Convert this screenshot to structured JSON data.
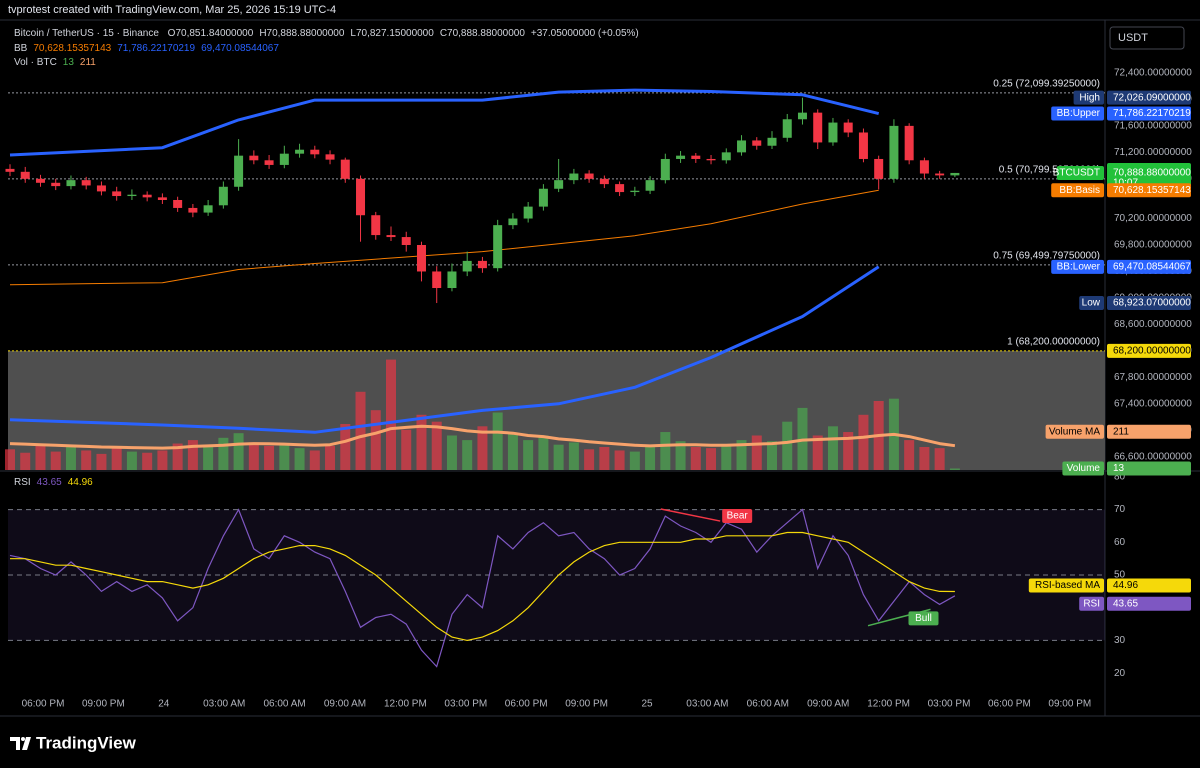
{
  "attribution": "tvprotest created with TradingView.com, Mar 25, 2026 15:19 UTC-4",
  "logo": "TradingView",
  "chart_data": {
    "type": "candlestick",
    "title": "Bitcoin / TetherUS · 15 · Binance",
    "ohlc_legend": [
      "O70,851.84000000",
      "H70,888.88000000",
      "L70,827.15000000",
      "C70,888.88000000",
      "+37.05000000 (+0.05%)"
    ],
    "bb_legend": {
      "name": "BB",
      "values": [
        "70,628.15357143",
        "71,786.22170219",
        "69,470.08544067"
      ]
    },
    "vol_legend": {
      "name": "Vol · BTC",
      "values": [
        13,
        211
      ]
    },
    "currency": "USDT",
    "x_labels": [
      "06:00 PM",
      "09:00 PM",
      "24",
      "03:00 AM",
      "06:00 AM",
      "09:00 AM",
      "12:00 PM",
      "03:00 PM",
      "06:00 PM",
      "09:00 PM",
      "25",
      "03:00 AM",
      "06:00 AM",
      "09:00 AM",
      "12:00 PM",
      "03:00 PM",
      "06:00 PM",
      "09:00 PM"
    ],
    "up_color": "#4caf50",
    "down_color": "#f23645",
    "open": [
      70950,
      70906,
      70800,
      70740,
      70690,
      70780,
      70700,
      70610,
      70540,
      70560,
      70520,
      70480,
      70360,
      70290,
      70400,
      70680,
      71150,
      71080,
      71010,
      71180,
      71240,
      71170,
      71090,
      70800,
      70250,
      69950,
      69920,
      69800,
      69400,
      69150,
      69400,
      69560,
      69450,
      70100,
      70200,
      70380,
      70650,
      70780,
      70880,
      70800,
      70720,
      70600,
      70620,
      70780,
      71100,
      71150,
      71100,
      71080,
      71200,
      71380,
      71300,
      71420,
      71700,
      71800,
      71350,
      71650,
      71500,
      71100,
      70800,
      71600,
      71080,
      70880,
      70851.84
    ],
    "high": [
      71020,
      70980,
      70860,
      70800,
      70850,
      70830,
      70760,
      70680,
      70640,
      70610,
      70580,
      70530,
      70420,
      70480,
      70760,
      71400,
      71230,
      71160,
      71300,
      71330,
      71300,
      71230,
      71120,
      70850,
      70300,
      70080,
      70000,
      69850,
      69480,
      69520,
      69700,
      69620,
      70180,
      70280,
      70450,
      70720,
      71100,
      70950,
      70930,
      70850,
      70760,
      70680,
      70840,
      71180,
      71220,
      71190,
      71160,
      71260,
      71460,
      71430,
      71520,
      71780,
      72026.09,
      71850,
      71720,
      71700,
      71560,
      71150,
      71700,
      71640,
      71120,
      70920,
      70888.88
    ],
    "low": [
      70840,
      70740,
      70680,
      70630,
      70640,
      70640,
      70550,
      70470,
      70480,
      70460,
      70420,
      70300,
      70220,
      70240,
      70350,
      70620,
      71020,
      70950,
      70960,
      71120,
      71110,
      71020,
      70740,
      69850,
      69880,
      69860,
      69700,
      69250,
      68923.07,
      69100,
      69330,
      69380,
      69400,
      70040,
      70140,
      70320,
      70600,
      70720,
      70740,
      70660,
      70540,
      70540,
      70570,
      70730,
      71040,
      71040,
      71020,
      71030,
      71150,
      71240,
      71250,
      71360,
      71620,
      71250,
      71300,
      71430,
      71050,
      70640,
      70740,
      71020,
      70800,
      70800,
      70827.15
    ],
    "close": [
      70906,
      70800,
      70740,
      70690,
      70780,
      70700,
      70610,
      70540,
      70560,
      70520,
      70480,
      70360,
      70290,
      70400,
      70680,
      71150,
      71080,
      71010,
      71180,
      71240,
      71170,
      71090,
      70800,
      70250,
      69950,
      69920,
      69800,
      69400,
      69150,
      69400,
      69560,
      69450,
      70100,
      70200,
      70380,
      70650,
      70780,
      70880,
      70800,
      70720,
      70600,
      70620,
      70780,
      71100,
      71150,
      71100,
      71080,
      71200,
      71380,
      71300,
      71420,
      71700,
      71800,
      71350,
      71650,
      71500,
      71100,
      70800,
      71600,
      71080,
      70880,
      70851.84,
      70888.88
    ],
    "ylim": [
      66400,
      73200
    ],
    "yticks": [
      {
        "value": 72400,
        "label": "72,400.00000000"
      },
      {
        "value": 72000,
        "label": "72,000.00000000"
      },
      {
        "value": 71600,
        "label": "71,600.00000000"
      },
      {
        "value": 71200,
        "label": "71,200.00000000"
      },
      {
        "value": 70800,
        "label": "70,800.00000000"
      },
      {
        "value": 70200,
        "label": "70,200.00000000"
      },
      {
        "value": 69800,
        "label": "69,800.00000000"
      },
      {
        "value": 69400,
        "label": "69,400.00000000"
      },
      {
        "value": 69000,
        "label": "69,000.00000000"
      },
      {
        "value": 68600,
        "label": "68,600.00000000"
      },
      {
        "value": 68200,
        "label": "68,200.00000000"
      },
      {
        "value": 67800,
        "label": "67,800.00000000"
      },
      {
        "value": 67400,
        "label": "67,400.00000000"
      },
      {
        "value": 67000,
        "label": "67,000.00000000"
      },
      {
        "value": 66600,
        "label": "66,600.00000000"
      }
    ],
    "bb": {
      "x": [
        0,
        10,
        15,
        20,
        31,
        36,
        41,
        46,
        52,
        57
      ],
      "upper": [
        71160,
        71270,
        71690,
        71990,
        71990,
        72110,
        72140,
        72120,
        72070,
        71786.22170219
      ],
      "basis": [
        69200,
        69230,
        69430,
        69520,
        69700,
        69820,
        69940,
        70120,
        70420,
        70628.15357143
      ],
      "lower": [
        67160,
        67080,
        67030,
        66970,
        67300,
        67400,
        67650,
        68100,
        68720,
        69470.08544067
      ],
      "band_color": "#2962ff",
      "basis_color": "#f57c00"
    },
    "fib_levels": [
      {
        "value": 72099.3925,
        "label": "0.25 (72,099.39250000)",
        "color": "#9598a1"
      },
      {
        "value": 70799.595,
        "label": "0.5 (70,799.59500000)",
        "color": "#9598a1"
      },
      {
        "value": 69499.7975,
        "label": "0.75 (69,499.79750000)",
        "color": "#9598a1"
      },
      {
        "value": 68200,
        "label": "1 (68,200.00000000)",
        "color": "#f5d90a"
      }
    ],
    "price_tags": [
      {
        "label": "High",
        "value": 72026.09,
        "value_label": "72,026.09000000",
        "color": "#1e3a75",
        "text_color": "#ffffff"
      },
      {
        "label": "BB:Upper",
        "value": 71786.22170219,
        "value_label": "71,786.22170219",
        "color": "#2962ff",
        "text_color": "#ffffff"
      },
      {
        "label": "BTCUSDT",
        "value": 70888.88,
        "value_label": "70,888.88000000",
        "extra": "10:07",
        "color": "#22c13a",
        "text_color": "#ffffff"
      },
      {
        "label": "BB:Basis",
        "value": 70628.15357143,
        "value_label": "70,628.15357143",
        "color": "#f57c00",
        "text_color": "#ffffff"
      },
      {
        "label": "BB:Lower",
        "value": 69470.08544067,
        "value_label": "69,470.08544067",
        "color": "#2962ff",
        "text_color": "#ffffff"
      },
      {
        "label": "Low",
        "value": 68923.07,
        "value_label": "68,923.07000000",
        "color": "#1e3a75",
        "text_color": "#ffffff"
      },
      {
        "value": 68200,
        "value_label": "68,200.00000000",
        "color": "#f5d90a",
        "text_color": "#000000"
      }
    ],
    "volume": {
      "values": [
        180,
        150,
        220,
        160,
        200,
        170,
        140,
        190,
        160,
        150,
        170,
        230,
        260,
        200,
        280,
        320,
        240,
        210,
        230,
        190,
        170,
        210,
        400,
        680,
        520,
        960,
        350,
        480,
        420,
        300,
        260,
        380,
        500,
        320,
        260,
        300,
        220,
        240,
        180,
        200,
        170,
        160,
        210,
        330,
        250,
        200,
        190,
        220,
        260,
        300,
        250,
        420,
        540,
        300,
        380,
        330,
        480,
        600,
        620,
        260,
        200,
        190,
        13
      ],
      "ma": [
        230,
        225,
        220,
        215,
        210,
        205,
        200,
        198,
        195,
        192,
        190,
        195,
        205,
        210,
        215,
        225,
        230,
        228,
        225,
        220,
        215,
        220,
        250,
        290,
        320,
        360,
        370,
        380,
        375,
        360,
        340,
        330,
        330,
        320,
        300,
        290,
        270,
        260,
        245,
        235,
        225,
        215,
        210,
        215,
        220,
        220,
        215,
        215,
        220,
        225,
        230,
        240,
        260,
        265,
        270,
        275,
        285,
        300,
        310,
        290,
        260,
        230,
        211
      ],
      "ylim": [
        0,
        1000
      ],
      "ma_color": "#f7a26b",
      "tags": [
        {
          "label": "Volume MA",
          "value": 211,
          "color": "#f7a26b",
          "text_color": "#000000"
        },
        {
          "label": "Volume",
          "value": 13,
          "color": "#4caf50",
          "text_color": "#ffffff"
        }
      ]
    },
    "rsi": {
      "name": "RSI",
      "legend": [
        43.65,
        44.96
      ],
      "values": [
        56,
        55,
        52,
        50,
        54,
        50,
        45,
        48,
        45,
        47,
        43,
        36,
        40,
        52,
        62,
        70,
        58,
        55,
        62,
        60,
        57,
        55,
        45,
        34,
        37,
        38,
        35,
        27,
        22,
        38,
        44,
        40,
        62,
        58,
        63,
        66,
        62,
        63,
        58,
        55,
        50,
        52,
        58,
        68,
        65,
        63,
        60,
        66,
        64,
        57,
        62,
        66,
        70,
        52,
        62,
        56,
        44,
        36,
        42,
        48,
        44,
        41,
        43.65
      ],
      "ma": [
        55,
        55,
        54,
        53,
        53,
        52,
        51,
        50,
        49,
        48,
        48,
        47,
        46,
        47,
        49,
        52,
        55,
        57,
        58,
        59,
        59,
        58,
        56,
        53,
        50,
        46,
        42,
        38,
        34,
        31,
        30,
        31,
        33,
        36,
        40,
        45,
        50,
        54,
        57,
        59,
        60,
        60,
        60,
        60,
        60,
        61,
        61,
        62,
        62,
        62,
        62,
        63,
        63,
        62,
        61,
        60,
        57,
        54,
        51,
        48,
        46,
        45,
        44.96
      ],
      "ylim": [
        7.5,
        81.5
      ],
      "yticks": [
        80,
        70,
        60,
        50,
        40,
        30,
        20
      ],
      "bands": [
        70,
        50,
        30
      ],
      "color": "#7e57c2",
      "ma_color": "#f5d90a",
      "tags": [
        {
          "label": "RSI-based MA",
          "value": 44.96,
          "color": "#f5d90a",
          "text_color": "#000000"
        },
        {
          "label": "RSI",
          "value": 43.65,
          "color": "#7e57c2",
          "text_color": "#ffffff"
        }
      ],
      "divergences": [
        {
          "label": "Bear",
          "x": [
            42.7,
            46.6
          ],
          "values": [
            70.2,
            66.5
          ],
          "color": "#f23645"
        },
        {
          "label": "Bull",
          "x": [
            56.3,
            60.4
          ],
          "values": [
            34.5,
            39.5
          ],
          "color": "#4caf50"
        }
      ]
    }
  }
}
